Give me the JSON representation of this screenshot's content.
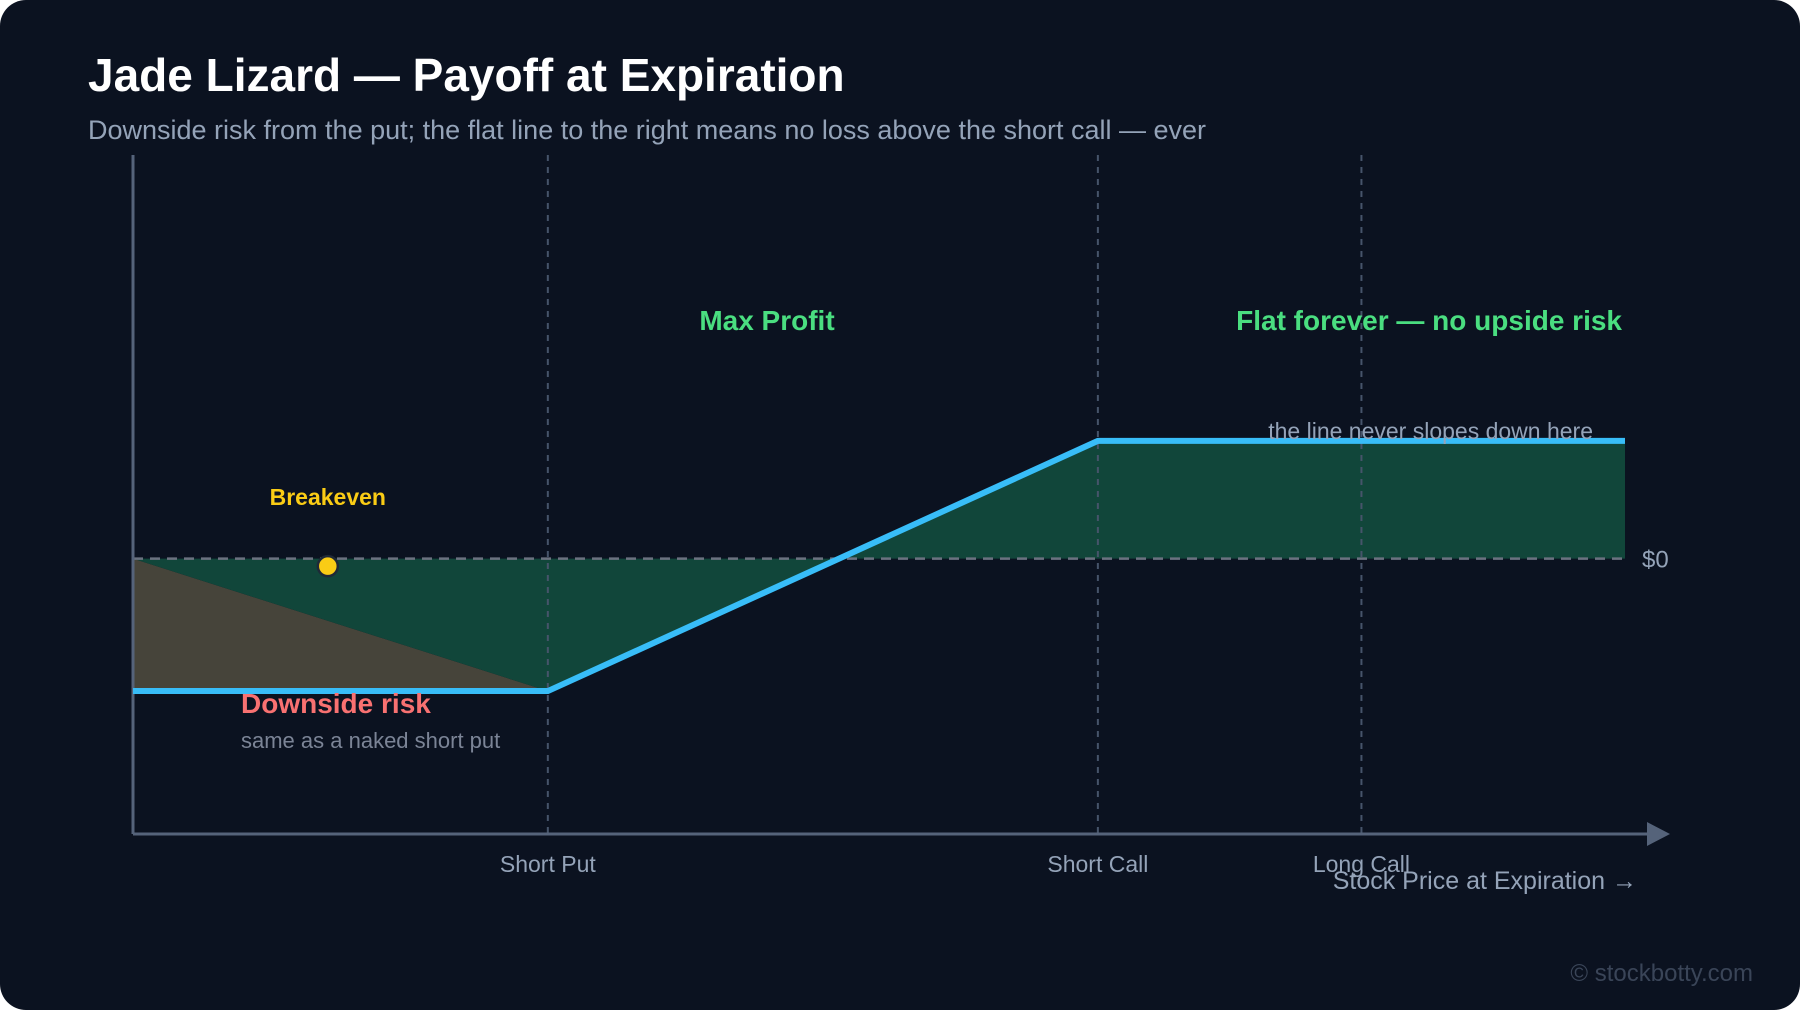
{
  "chart_data": {
    "type": "line",
    "title": "Jade Lizard — Payoff at Expiration",
    "subtitle": "Downside risk from the put; the flat line to the right means no loss above the short call — ever",
    "xlabel": "Stock Price at Expiration →",
    "ylabel": "",
    "x_markers": [
      {
        "label": "Short Put",
        "x": 100
      },
      {
        "label": "Short Call",
        "x": 112
      },
      {
        "label": "Long Call",
        "x": 117.75
      }
    ],
    "xlim": [
      90.95,
      123.5
    ],
    "ylim": [
      -6.55,
      9.6
    ],
    "zero_label": "$0",
    "series": [
      {
        "values": [
          {
            "x": 90.95,
            "y": -3.15
          },
          {
            "x": 100,
            "y": -3.15
          },
          {
            "x": 112,
            "y": 2.8
          },
          {
            "x": 123.5,
            "y": 2.8
          }
        ]
      }
    ],
    "breakeven": {
      "label": "Breakeven",
      "x": 95.2,
      "y": -0.18
    },
    "annotations": {
      "max_profit": "Max Profit",
      "flat_forever": "Flat forever — no upside risk",
      "never_slopes": "the line never slopes down here",
      "downside_risk": "Downside risk",
      "downside_note": "same as a naked short put"
    },
    "colors": {
      "payoff_line": "#38bdf8",
      "profit_fill": "#11463a",
      "risk_fill": "#46443a",
      "profit_text": "#4ade80",
      "risk_text": "#f87171",
      "breakeven": "#facc15",
      "axis": "#55637a",
      "grid": "#46546a",
      "muted_text": "#94a3b8"
    }
  },
  "footer": {
    "watermark": "© stockbotty.com"
  }
}
